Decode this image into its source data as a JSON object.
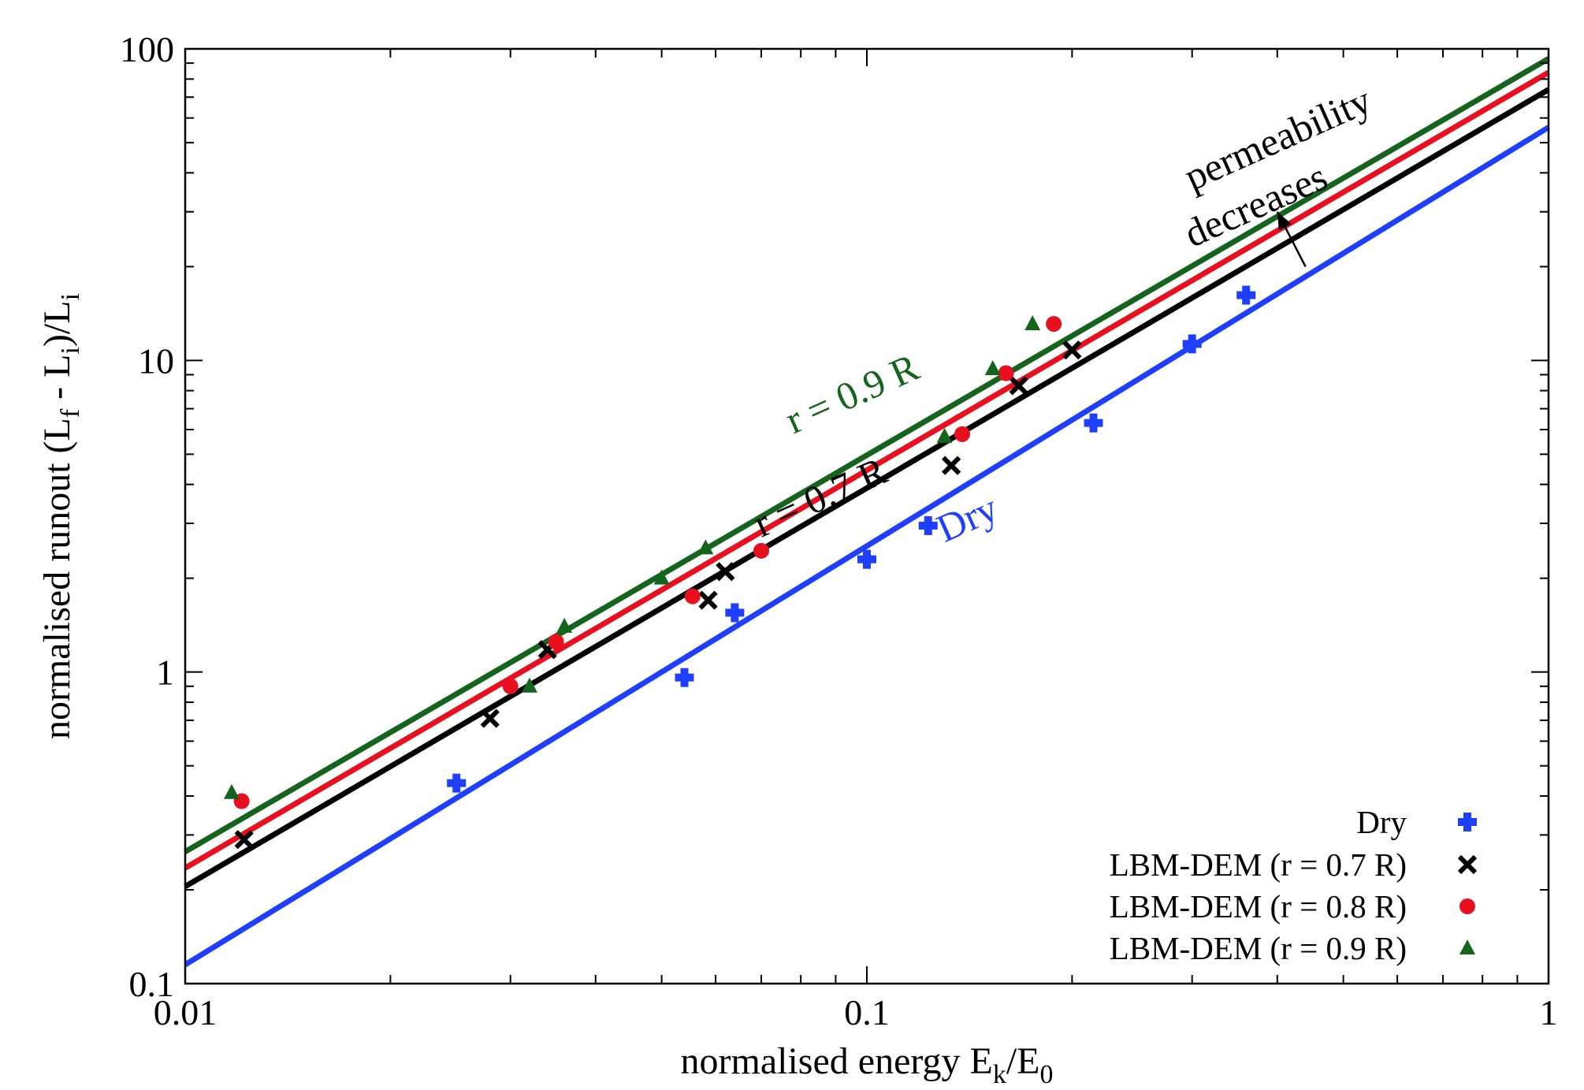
{
  "chart_data": {
    "type": "scatter",
    "x_scale": "log",
    "y_scale": "log",
    "xlim": [
      0.01,
      1
    ],
    "ylim": [
      0.1,
      100
    ],
    "x_ticks": [
      {
        "value": 0.01,
        "label": "0.01"
      },
      {
        "value": 0.1,
        "label": "0.1"
      },
      {
        "value": 1,
        "label": "1"
      }
    ],
    "y_ticks": [
      {
        "value": 0.1,
        "label": "0.1"
      },
      {
        "value": 1,
        "label": "1"
      },
      {
        "value": 10,
        "label": "10"
      },
      {
        "value": 100,
        "label": "100"
      }
    ],
    "xlabel": {
      "main": "normalised energy E",
      "sub1": "k",
      "mid": "/E",
      "sub2": "0"
    },
    "ylabel": {
      "p1": "normalised runout (L",
      "s1": "f",
      "p2": " - L",
      "s2": "i",
      "p3": ")/L",
      "s3": "i"
    },
    "grid": false,
    "legend_position": "bottom-right",
    "series": [
      {
        "name": "Dry",
        "color": "#1f3fff",
        "marker": "plus",
        "points": [
          [
            0.025,
            0.44
          ],
          [
            0.054,
            0.96
          ],
          [
            0.064,
            1.55
          ],
          [
            0.1,
            2.3
          ],
          [
            0.123,
            2.95
          ],
          [
            0.215,
            6.3
          ],
          [
            0.3,
            11.3
          ],
          [
            0.36,
            16.2
          ]
        ],
        "fit": [
          [
            0.01,
            0.115
          ],
          [
            1,
            56
          ]
        ]
      },
      {
        "name": "LBM-DEM (r = 0.7 R)",
        "color": "#000000",
        "marker": "cross",
        "points": [
          [
            0.0122,
            0.29
          ],
          [
            0.028,
            0.71
          ],
          [
            0.034,
            1.18
          ],
          [
            0.0585,
            1.7
          ],
          [
            0.062,
            2.1
          ],
          [
            0.133,
            4.6
          ],
          [
            0.167,
            8.3
          ],
          [
            0.2,
            10.8
          ]
        ],
        "fit": [
          [
            0.01,
            0.205
          ],
          [
            1,
            74
          ]
        ]
      },
      {
        "name": "LBM-DEM (r = 0.8 R)",
        "color": "#e8101e",
        "marker": "circle",
        "points": [
          [
            0.0121,
            0.385
          ],
          [
            0.03,
            0.9
          ],
          [
            0.035,
            1.25
          ],
          [
            0.0555,
            1.75
          ],
          [
            0.07,
            2.45
          ],
          [
            0.138,
            5.8
          ],
          [
            0.16,
            9.1
          ],
          [
            0.188,
            13.1
          ]
        ],
        "fit": [
          [
            0.01,
            0.235
          ],
          [
            1,
            84
          ]
        ]
      },
      {
        "name": "LBM-DEM (r = 0.9 R)",
        "color": "#14641e",
        "marker": "triangle",
        "points": [
          [
            0.0117,
            0.41
          ],
          [
            0.032,
            0.9
          ],
          [
            0.036,
            1.4
          ],
          [
            0.05,
            2.0
          ],
          [
            0.058,
            2.5
          ],
          [
            0.13,
            5.7
          ],
          [
            0.153,
            9.4
          ],
          [
            0.175,
            13.1
          ]
        ],
        "fit": [
          [
            0.01,
            0.265
          ],
          [
            1,
            93
          ]
        ]
      }
    ],
    "annotations": {
      "r09": {
        "text": "r = 0.9 R",
        "color": "#14641e",
        "x": 0.078,
        "y": 5.8
      },
      "r07": {
        "text": "r = 0.7 R",
        "color": "#000000",
        "x": 0.07,
        "y": 2.7
      },
      "dry": {
        "text": "Dry",
        "color": "#1f3fff",
        "x": 0.13,
        "y": 2.6
      },
      "perm1": {
        "text": "permeability",
        "color": "#000000",
        "x": 0.3,
        "y": 35
      },
      "perm2": {
        "text": "decreases",
        "color": "#000000",
        "x": 0.3,
        "y": 23
      },
      "arrow": {
        "from": [
          0.44,
          20
        ],
        "to": [
          0.4,
          30
        ]
      }
    }
  }
}
